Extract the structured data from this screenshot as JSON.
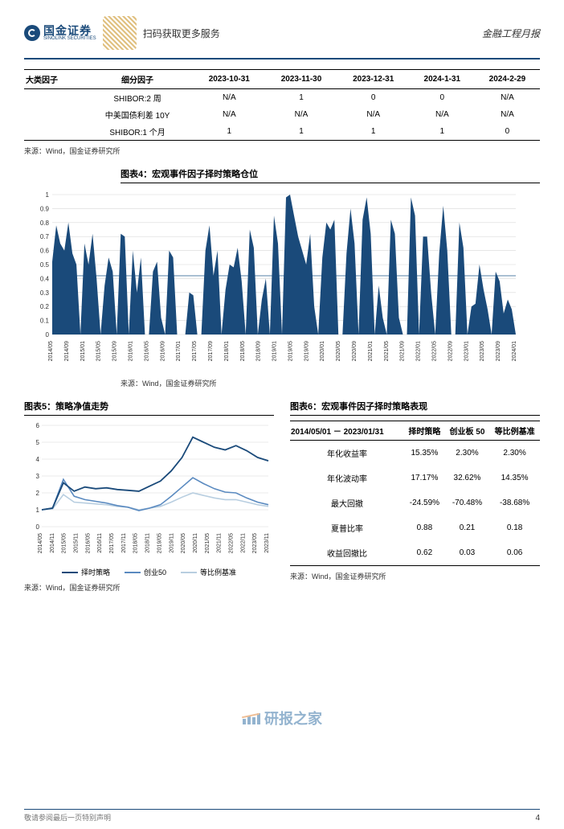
{
  "header": {
    "logo_cn": "国金证券",
    "logo_en": "SINOLINK SECURITIES",
    "scan_text": "扫码获取更多服务",
    "doc_type": "金融工程月报"
  },
  "table1": {
    "columns": [
      "大类因子",
      "细分因子",
      "2023-10-31",
      "2023-11-30",
      "2023-12-31",
      "2024-1-31",
      "2024-2-29"
    ],
    "rows": [
      [
        "",
        "SHIBOR:2 周",
        "N/A",
        "1",
        "0",
        "0",
        "N/A"
      ],
      [
        "",
        "中美国债利差 10Y",
        "N/A",
        "N/A",
        "N/A",
        "N/A",
        "N/A"
      ],
      [
        "",
        "SHIBOR:1 个月",
        "1",
        "1",
        "1",
        "1",
        "0"
      ]
    ],
    "col_align": [
      "left",
      "center",
      "center",
      "center",
      "center",
      "center",
      "center"
    ]
  },
  "source_text": "来源：Wind，国金证券研究所",
  "chart4": {
    "title": "图表4：宏观事件因子择时策略仓位",
    "type": "area",
    "ylim": [
      0,
      1
    ],
    "ytick_step": 0.1,
    "yticks": [
      "0",
      "0.1",
      "0.2",
      "0.3",
      "0.4",
      "0.5",
      "0.6",
      "0.7",
      "0.8",
      "0.9",
      "1"
    ],
    "xlabels": [
      "2014/05",
      "2014/09",
      "2015/01",
      "2015/05",
      "2015/09",
      "2016/01",
      "2016/05",
      "2016/09",
      "2017/01",
      "2017/05",
      "2017/09",
      "2018/01",
      "2018/05",
      "2018/09",
      "2019/01",
      "2019/05",
      "2019/09",
      "2020/01",
      "2020/05",
      "2020/09",
      "2021/01",
      "2021/05",
      "2021/09",
      "2022/01",
      "2022/05",
      "2022/09",
      "2023/01",
      "2023/05",
      "2023/09",
      "2024/01"
    ],
    "area_color": "#1a4a7a",
    "refline_color": "#6a8fb0",
    "refline_y": 0.42,
    "grid_color": "#d8d8d8",
    "background_color": "#ffffff",
    "values": [
      0.52,
      0.78,
      0.65,
      0.6,
      0.8,
      0.58,
      0.5,
      0.0,
      0.65,
      0.5,
      0.72,
      0.4,
      0.0,
      0.35,
      0.55,
      0.45,
      0.0,
      0.72,
      0.7,
      0.0,
      0.6,
      0.3,
      0.55,
      0.0,
      0.0,
      0.45,
      0.52,
      0.12,
      0.0,
      0.6,
      0.55,
      0.0,
      0.0,
      0.0,
      0.3,
      0.28,
      0.0,
      0.0,
      0.6,
      0.78,
      0.42,
      0.6,
      0.0,
      0.32,
      0.5,
      0.48,
      0.62,
      0.38,
      0.0,
      0.75,
      0.62,
      0.0,
      0.25,
      0.4,
      0.0,
      0.85,
      0.65,
      0.0,
      0.98,
      1.0,
      0.85,
      0.7,
      0.6,
      0.5,
      0.72,
      0.2,
      0.0,
      0.55,
      0.8,
      0.75,
      0.82,
      0.0,
      0.0,
      0.58,
      0.9,
      0.65,
      0.0,
      0.82,
      0.98,
      0.72,
      0.0,
      0.35,
      0.12,
      0.0,
      0.82,
      0.72,
      0.12,
      0.0,
      0.0,
      0.98,
      0.85,
      0.0,
      0.7,
      0.7,
      0.3,
      0.0,
      0.58,
      0.92,
      0.6,
      0.0,
      0.0,
      0.8,
      0.62,
      0.0,
      0.2,
      0.22,
      0.5,
      0.32,
      0.18,
      0.0,
      0.45,
      0.38,
      0.15,
      0.25,
      0.18,
      0.0
    ]
  },
  "chart5": {
    "title": "图表5：策略净值走势",
    "type": "line",
    "ylim": [
      0,
      6
    ],
    "yticks": [
      "0",
      "1",
      "2",
      "3",
      "4",
      "5",
      "6"
    ],
    "xlabels": [
      "2014/05",
      "2014/11",
      "2015/05",
      "2015/11",
      "2016/05",
      "2016/11",
      "2017/05",
      "2017/11",
      "2018/05",
      "2018/11",
      "2019/05",
      "2019/11",
      "2020/05",
      "2020/11",
      "2021/05",
      "2021/11",
      "2022/05",
      "2022/11",
      "2023/05",
      "2023/11"
    ],
    "grid_color": "#d8d8d8",
    "series": [
      {
        "name": "择时策略",
        "color": "#1a4a7a",
        "width": 1.8,
        "values": [
          1.0,
          1.1,
          2.6,
          2.1,
          2.35,
          2.25,
          2.3,
          2.2,
          2.15,
          2.1,
          2.4,
          2.7,
          3.3,
          4.1,
          5.3,
          5.0,
          4.7,
          4.55,
          4.8,
          4.5,
          4.1,
          3.9
        ]
      },
      {
        "name": "创业50",
        "color": "#5a8ac0",
        "width": 1.6,
        "values": [
          1.0,
          1.1,
          2.8,
          1.8,
          1.6,
          1.5,
          1.4,
          1.25,
          1.15,
          0.95,
          1.1,
          1.3,
          1.8,
          2.35,
          2.9,
          2.55,
          2.25,
          2.05,
          2.0,
          1.7,
          1.45,
          1.3
        ]
      },
      {
        "name": "等比例基准",
        "color": "#b8cee0",
        "width": 1.6,
        "values": [
          1.0,
          1.05,
          1.9,
          1.45,
          1.4,
          1.35,
          1.3,
          1.2,
          1.15,
          1.0,
          1.1,
          1.2,
          1.45,
          1.75,
          2.0,
          1.85,
          1.7,
          1.6,
          1.6,
          1.45,
          1.3,
          1.2
        ]
      }
    ],
    "legend_labels": [
      "择时策略",
      "创业50",
      "等比例基准"
    ]
  },
  "chart6": {
    "title": "图表6：宏观事件因子择时策略表现",
    "date_range": "2014/05/01 － 2023/01/31",
    "columns": [
      "",
      "择时策略",
      "创业板 50",
      "等比例基准"
    ],
    "rows": [
      [
        "年化收益率",
        "15.35%",
        "2.30%",
        "2.30%"
      ],
      [
        "年化波动率",
        "17.17%",
        "32.62%",
        "14.35%"
      ],
      [
        "最大回撤",
        "-24.59%",
        "-70.48%",
        "-38.68%"
      ],
      [
        "夏普比率",
        "0.88",
        "0.21",
        "0.18"
      ],
      [
        "收益回撤比",
        "0.62",
        "0.03",
        "0.06"
      ]
    ]
  },
  "watermark_text": "研报之家",
  "footer": {
    "disclaimer_fragment": "敬请参阅最后一页特别声明",
    "page_num": "4"
  }
}
